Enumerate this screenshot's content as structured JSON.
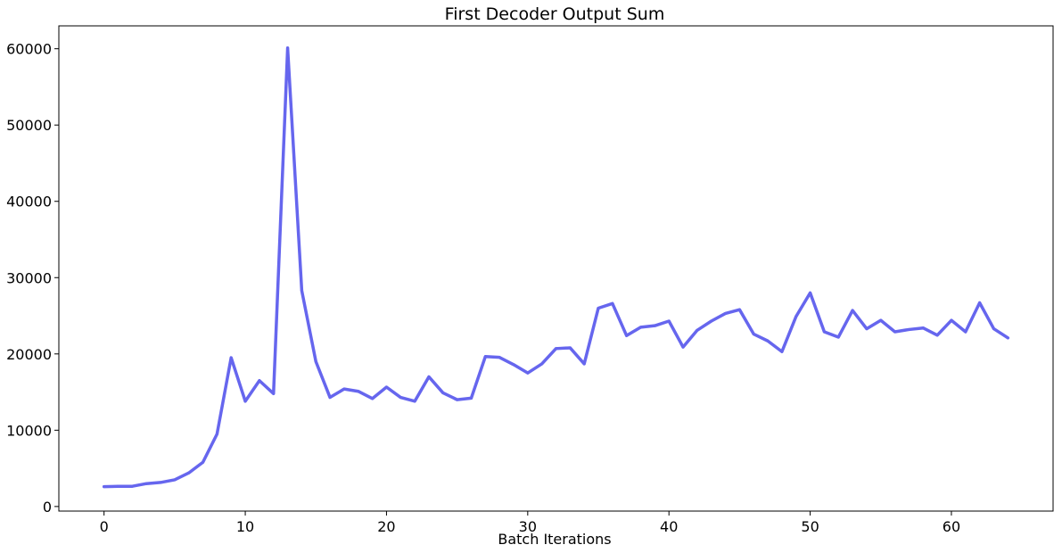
{
  "chart_data": {
    "type": "line",
    "title": "First Decoder Output Sum",
    "xlabel": "Batch Iterations",
    "ylabel": "",
    "xlim": [
      -3.2,
      67.2
    ],
    "ylim": [
      -600,
      63000
    ],
    "x_ticks": [
      0,
      10,
      20,
      30,
      40,
      50,
      60
    ],
    "y_ticks": [
      0,
      10000,
      20000,
      30000,
      40000,
      50000,
      60000
    ],
    "grid": false,
    "color": "#6666ee",
    "series": [
      {
        "x": [
          0,
          1,
          2,
          3,
          4,
          5,
          6,
          7,
          8,
          9,
          10,
          11,
          12,
          13,
          14,
          15,
          16,
          17,
          18,
          19,
          20,
          21,
          22,
          23,
          24,
          25,
          26,
          27,
          28,
          29,
          30,
          31,
          32,
          33,
          34,
          35,
          36,
          37,
          38,
          39,
          40,
          41,
          42,
          43,
          44,
          45,
          46,
          47,
          48,
          49,
          50,
          51,
          52,
          53,
          54,
          55,
          56,
          57,
          58,
          59,
          60,
          61,
          62,
          63,
          64
        ],
        "values": [
          2600,
          2650,
          2650,
          3000,
          3150,
          3500,
          4400,
          5800,
          9500,
          19500,
          13800,
          16500,
          14800,
          60100,
          28300,
          19000,
          14300,
          15400,
          15100,
          14150,
          15650,
          14300,
          13800,
          17000,
          14900,
          14000,
          14200,
          19650,
          19550,
          18600,
          17500,
          18700,
          20700,
          20800,
          18700,
          26000,
          26600,
          22400,
          23500,
          23700,
          24300,
          20900,
          23100,
          24300,
          25300,
          25800,
          22600,
          21700,
          20300,
          24900,
          28000,
          22900,
          22200,
          25700,
          23300,
          24400,
          22900,
          23200,
          23400,
          22450,
          24400,
          22900,
          26700,
          23300,
          22100
        ]
      }
    ]
  }
}
